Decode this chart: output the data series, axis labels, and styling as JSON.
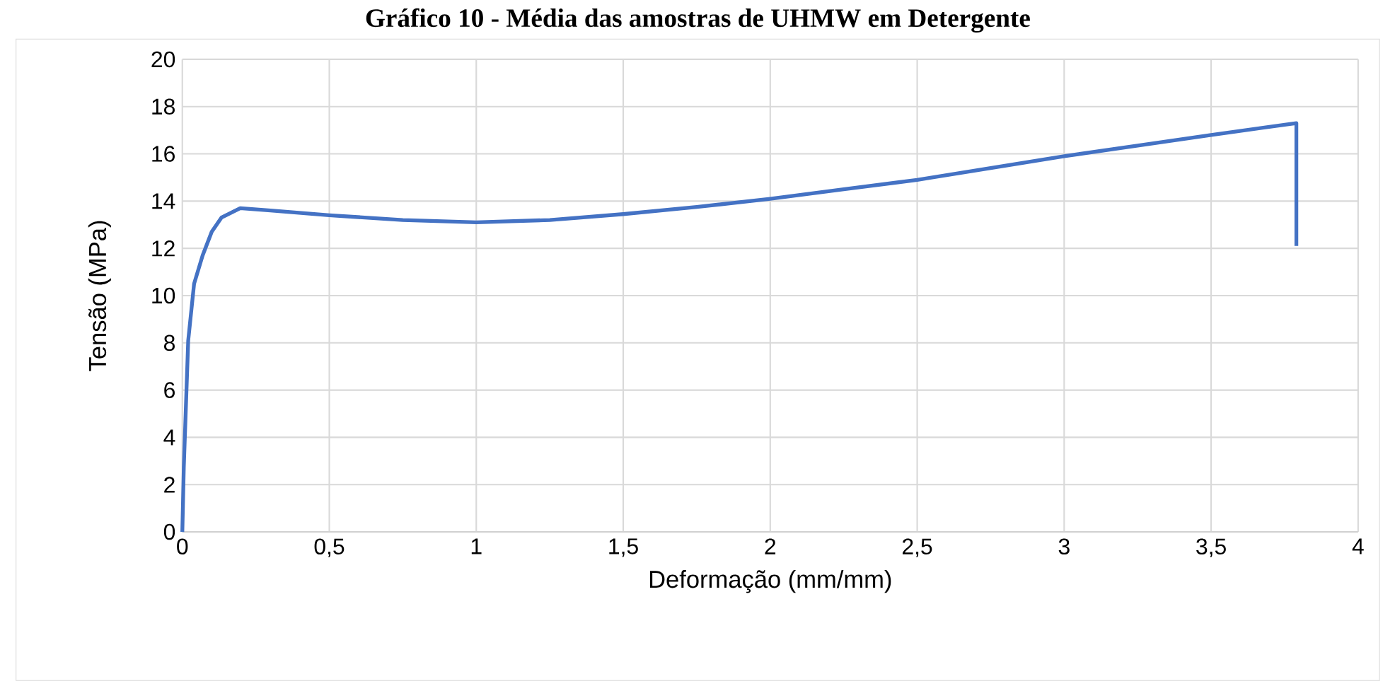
{
  "chart_data": {
    "type": "line",
    "title": "Gráfico 10 - Média das amostras de UHMW em Detergente",
    "xlabel": "Deformação (mm/mm)",
    "ylabel": "Tensão (MPa)",
    "xlim": [
      0,
      4
    ],
    "ylim": [
      0,
      20
    ],
    "xticks": [
      0,
      {
        "value": 0.5,
        "label": "0,5"
      },
      1,
      {
        "value": 1.5,
        "label": "1,5"
      },
      2,
      {
        "value": 2.5,
        "label": "2,5"
      },
      3,
      {
        "value": 3.5,
        "label": "3,5"
      },
      4
    ],
    "yticks": [
      0,
      2,
      4,
      6,
      8,
      10,
      12,
      14,
      16,
      18,
      20
    ],
    "grid": true,
    "marker": "none",
    "line_style": "solid",
    "series": [
      {
        "color": "#4472c4",
        "x": [
          0,
          0.005,
          0.02,
          0.04,
          0.069,
          0.1,
          0.133,
          0.197,
          0.3,
          0.5,
          0.75,
          1.0,
          1.25,
          1.5,
          1.75,
          2.0,
          2.25,
          2.5,
          2.75,
          3.0,
          3.25,
          3.5,
          3.79,
          3.79
        ],
        "values": [
          0,
          2.75,
          8.1,
          10.5,
          11.7,
          12.7,
          13.3,
          13.7,
          13.6,
          13.4,
          13.2,
          13.1,
          13.2,
          13.45,
          13.75,
          14.1,
          14.5,
          14.9,
          15.4,
          15.9,
          16.35,
          16.8,
          17.3,
          12.1
        ]
      }
    ]
  }
}
